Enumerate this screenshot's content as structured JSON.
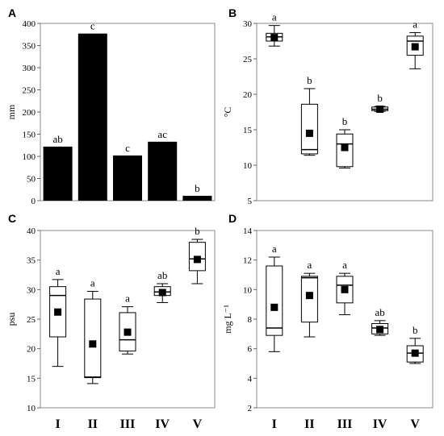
{
  "categories": [
    "I",
    "II",
    "III",
    "IV",
    "V"
  ],
  "chart_data": [
    {
      "panel": "A",
      "type": "bar",
      "ylabel": "mm",
      "ylim": [
        0,
        400
      ],
      "yticks": [
        0,
        50,
        100,
        150,
        200,
        250,
        300,
        350,
        400
      ],
      "categories": [
        "I",
        "II",
        "III",
        "IV",
        "V"
      ],
      "values": [
        122,
        377,
        102,
        133,
        11
      ],
      "letters": [
        "ab",
        "c",
        "c",
        "ac",
        "b"
      ],
      "bar_color": "#000000"
    },
    {
      "panel": "B",
      "type": "box",
      "ylabel": "°C",
      "ylim": [
        5,
        30
      ],
      "yticks": [
        5,
        10,
        15,
        20,
        25,
        30
      ],
      "categories": [
        "I",
        "II",
        "III",
        "IV",
        "V"
      ],
      "boxes": [
        {
          "min": 26.8,
          "q1": 27.5,
          "median": 28.1,
          "q3": 28.6,
          "max": 29.7,
          "mean": 28.0
        },
        {
          "min": 11.4,
          "q1": 11.6,
          "median": 12.2,
          "q3": 18.6,
          "max": 20.8,
          "mean": 14.5
        },
        {
          "min": 9.6,
          "q1": 9.8,
          "median": 13.0,
          "q3": 14.4,
          "max": 15.0,
          "mean": 12.5
        },
        {
          "min": 17.6,
          "q1": 17.7,
          "median": 17.9,
          "q3": 18.2,
          "max": 18.3,
          "mean": 17.9
        },
        {
          "min": 23.6,
          "q1": 25.5,
          "median": 27.5,
          "q3": 28.2,
          "max": 28.7,
          "mean": 26.7
        }
      ],
      "letters": [
        "a",
        "b",
        "b",
        "b",
        "a"
      ]
    },
    {
      "panel": "C",
      "type": "box",
      "ylabel": "psu",
      "ylim": [
        10,
        40
      ],
      "yticks": [
        10,
        15,
        20,
        25,
        30,
        35,
        40
      ],
      "categories": [
        "I",
        "II",
        "III",
        "IV",
        "V"
      ],
      "boxes": [
        {
          "min": 17.0,
          "q1": 22.0,
          "median": 29.0,
          "q3": 30.5,
          "max": 31.7,
          "mean": 26.2
        },
        {
          "min": 14.1,
          "q1": 15.1,
          "median": 15.2,
          "q3": 28.4,
          "max": 29.7,
          "mean": 20.8
        },
        {
          "min": 19.1,
          "q1": 19.6,
          "median": 21.5,
          "q3": 26.1,
          "max": 27.1,
          "mean": 22.8
        },
        {
          "min": 27.8,
          "q1": 29.0,
          "median": 29.6,
          "q3": 30.5,
          "max": 31.0,
          "mean": 29.5
        },
        {
          "min": 31.0,
          "q1": 33.2,
          "median": 35.2,
          "q3": 38.0,
          "max": 38.5,
          "mean": 35.1
        }
      ],
      "letters": [
        "a",
        "a",
        "a",
        "ab",
        "b"
      ]
    },
    {
      "panel": "D",
      "type": "box",
      "ylabel": "mg L⁻¹",
      "ylim": [
        2,
        14
      ],
      "yticks": [
        2,
        4,
        6,
        8,
        10,
        12,
        14
      ],
      "categories": [
        "I",
        "II",
        "III",
        "IV",
        "V"
      ],
      "boxes": [
        {
          "min": 5.8,
          "q1": 6.9,
          "median": 7.4,
          "q3": 11.6,
          "max": 12.2,
          "mean": 8.8
        },
        {
          "min": 6.8,
          "q1": 7.8,
          "median": 10.8,
          "q3": 10.9,
          "max": 11.1,
          "mean": 9.6
        },
        {
          "min": 8.3,
          "q1": 9.1,
          "median": 10.3,
          "q3": 10.9,
          "max": 11.1,
          "mean": 10.0
        },
        {
          "min": 6.9,
          "q1": 7.0,
          "median": 7.4,
          "q3": 7.7,
          "max": 7.9,
          "mean": 7.3
        },
        {
          "min": 5.0,
          "q1": 5.1,
          "median": 5.7,
          "q3": 6.2,
          "max": 6.7,
          "mean": 5.7
        }
      ],
      "letters": [
        "a",
        "a",
        "a",
        "ab",
        "b"
      ]
    }
  ]
}
